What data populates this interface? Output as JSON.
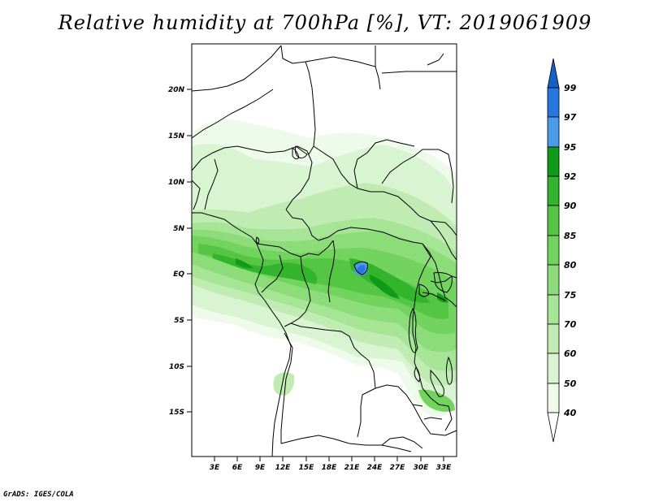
{
  "title": "Relative humidity at 700hPa [%], VT: 2019061909",
  "credit": "GrADS: IGES/COLA",
  "map": {
    "lat_ticks": [
      "20N",
      "15N",
      "10N",
      "5N",
      "EQ",
      "5S",
      "10S",
      "15S"
    ],
    "lon_ticks": [
      "3E",
      "6E",
      "9E",
      "12E",
      "15E",
      "18E",
      "21E",
      "24E",
      "27E",
      "30E",
      "33E"
    ]
  },
  "colorbar": {
    "labels": [
      "99",
      "97",
      "95",
      "92",
      "90",
      "85",
      "80",
      "75",
      "70",
      "60",
      "50",
      "40"
    ],
    "colors": {
      "c40": "#eefaea",
      "c50": "#d8f4d0",
      "c60": "#c0ecb4",
      "c70": "#a6e496",
      "c75": "#8ddc7a",
      "c80": "#72d35e",
      "c85": "#55c644",
      "c90": "#32b42c",
      "c92": "#0f9a18",
      "c95": "#4a9be8",
      "c97": "#2677de",
      "c99": "#1660c8"
    }
  }
}
